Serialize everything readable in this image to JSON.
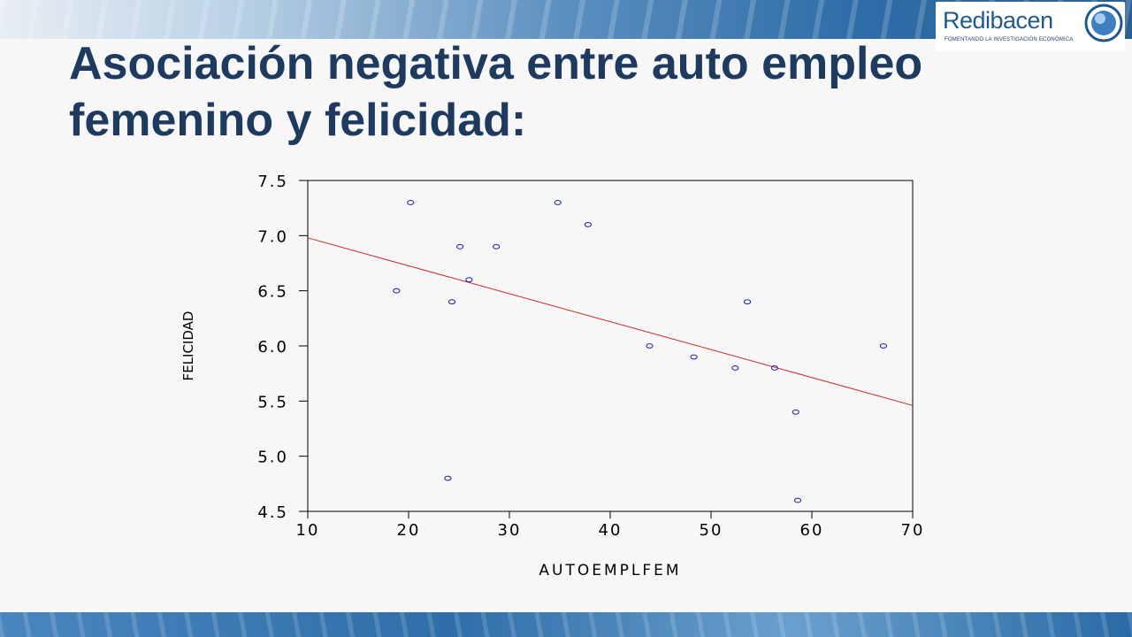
{
  "slide": {
    "title": "Asociación negativa entre auto empleo femenino y felicidad:"
  },
  "logo": {
    "name": "Redibacen",
    "tagline": "FOMENTANDO LA INVESTIGACIÓN ECONÓMICA"
  },
  "colors": {
    "title": "#1f3a5f",
    "points": "#1a1aa6",
    "fit_line": "#c62828",
    "axis": "#000000"
  },
  "chart_data": {
    "type": "scatter",
    "xlabel": "AUTOEMPLFEM",
    "ylabel": "FELICIDAD",
    "xlim": [
      10,
      70
    ],
    "ylim": [
      4.5,
      7.5
    ],
    "xticks": [
      "10",
      "20",
      "30",
      "40",
      "50",
      "60",
      "70"
    ],
    "yticks": [
      "4.5",
      "5.0",
      "5.5",
      "6.0",
      "6.5",
      "7.0",
      "7.5"
    ],
    "points": [
      {
        "x": 18.8,
        "y": 6.5
      },
      {
        "x": 20.2,
        "y": 7.3
      },
      {
        "x": 23.9,
        "y": 4.8
      },
      {
        "x": 24.3,
        "y": 6.4
      },
      {
        "x": 25.1,
        "y": 6.9
      },
      {
        "x": 26.0,
        "y": 6.6
      },
      {
        "x": 28.7,
        "y": 6.9
      },
      {
        "x": 34.8,
        "y": 7.3
      },
      {
        "x": 37.8,
        "y": 7.1
      },
      {
        "x": 43.9,
        "y": 6.0
      },
      {
        "x": 48.3,
        "y": 5.9
      },
      {
        "x": 52.4,
        "y": 5.8
      },
      {
        "x": 53.6,
        "y": 6.4
      },
      {
        "x": 56.3,
        "y": 5.8
      },
      {
        "x": 58.4,
        "y": 5.4
      },
      {
        "x": 58.6,
        "y": 4.6
      },
      {
        "x": 67.1,
        "y": 6.0
      }
    ],
    "fit_line": {
      "x": [
        10,
        70
      ],
      "y": [
        6.98,
        5.46
      ]
    },
    "grid": false,
    "legend": "none"
  }
}
